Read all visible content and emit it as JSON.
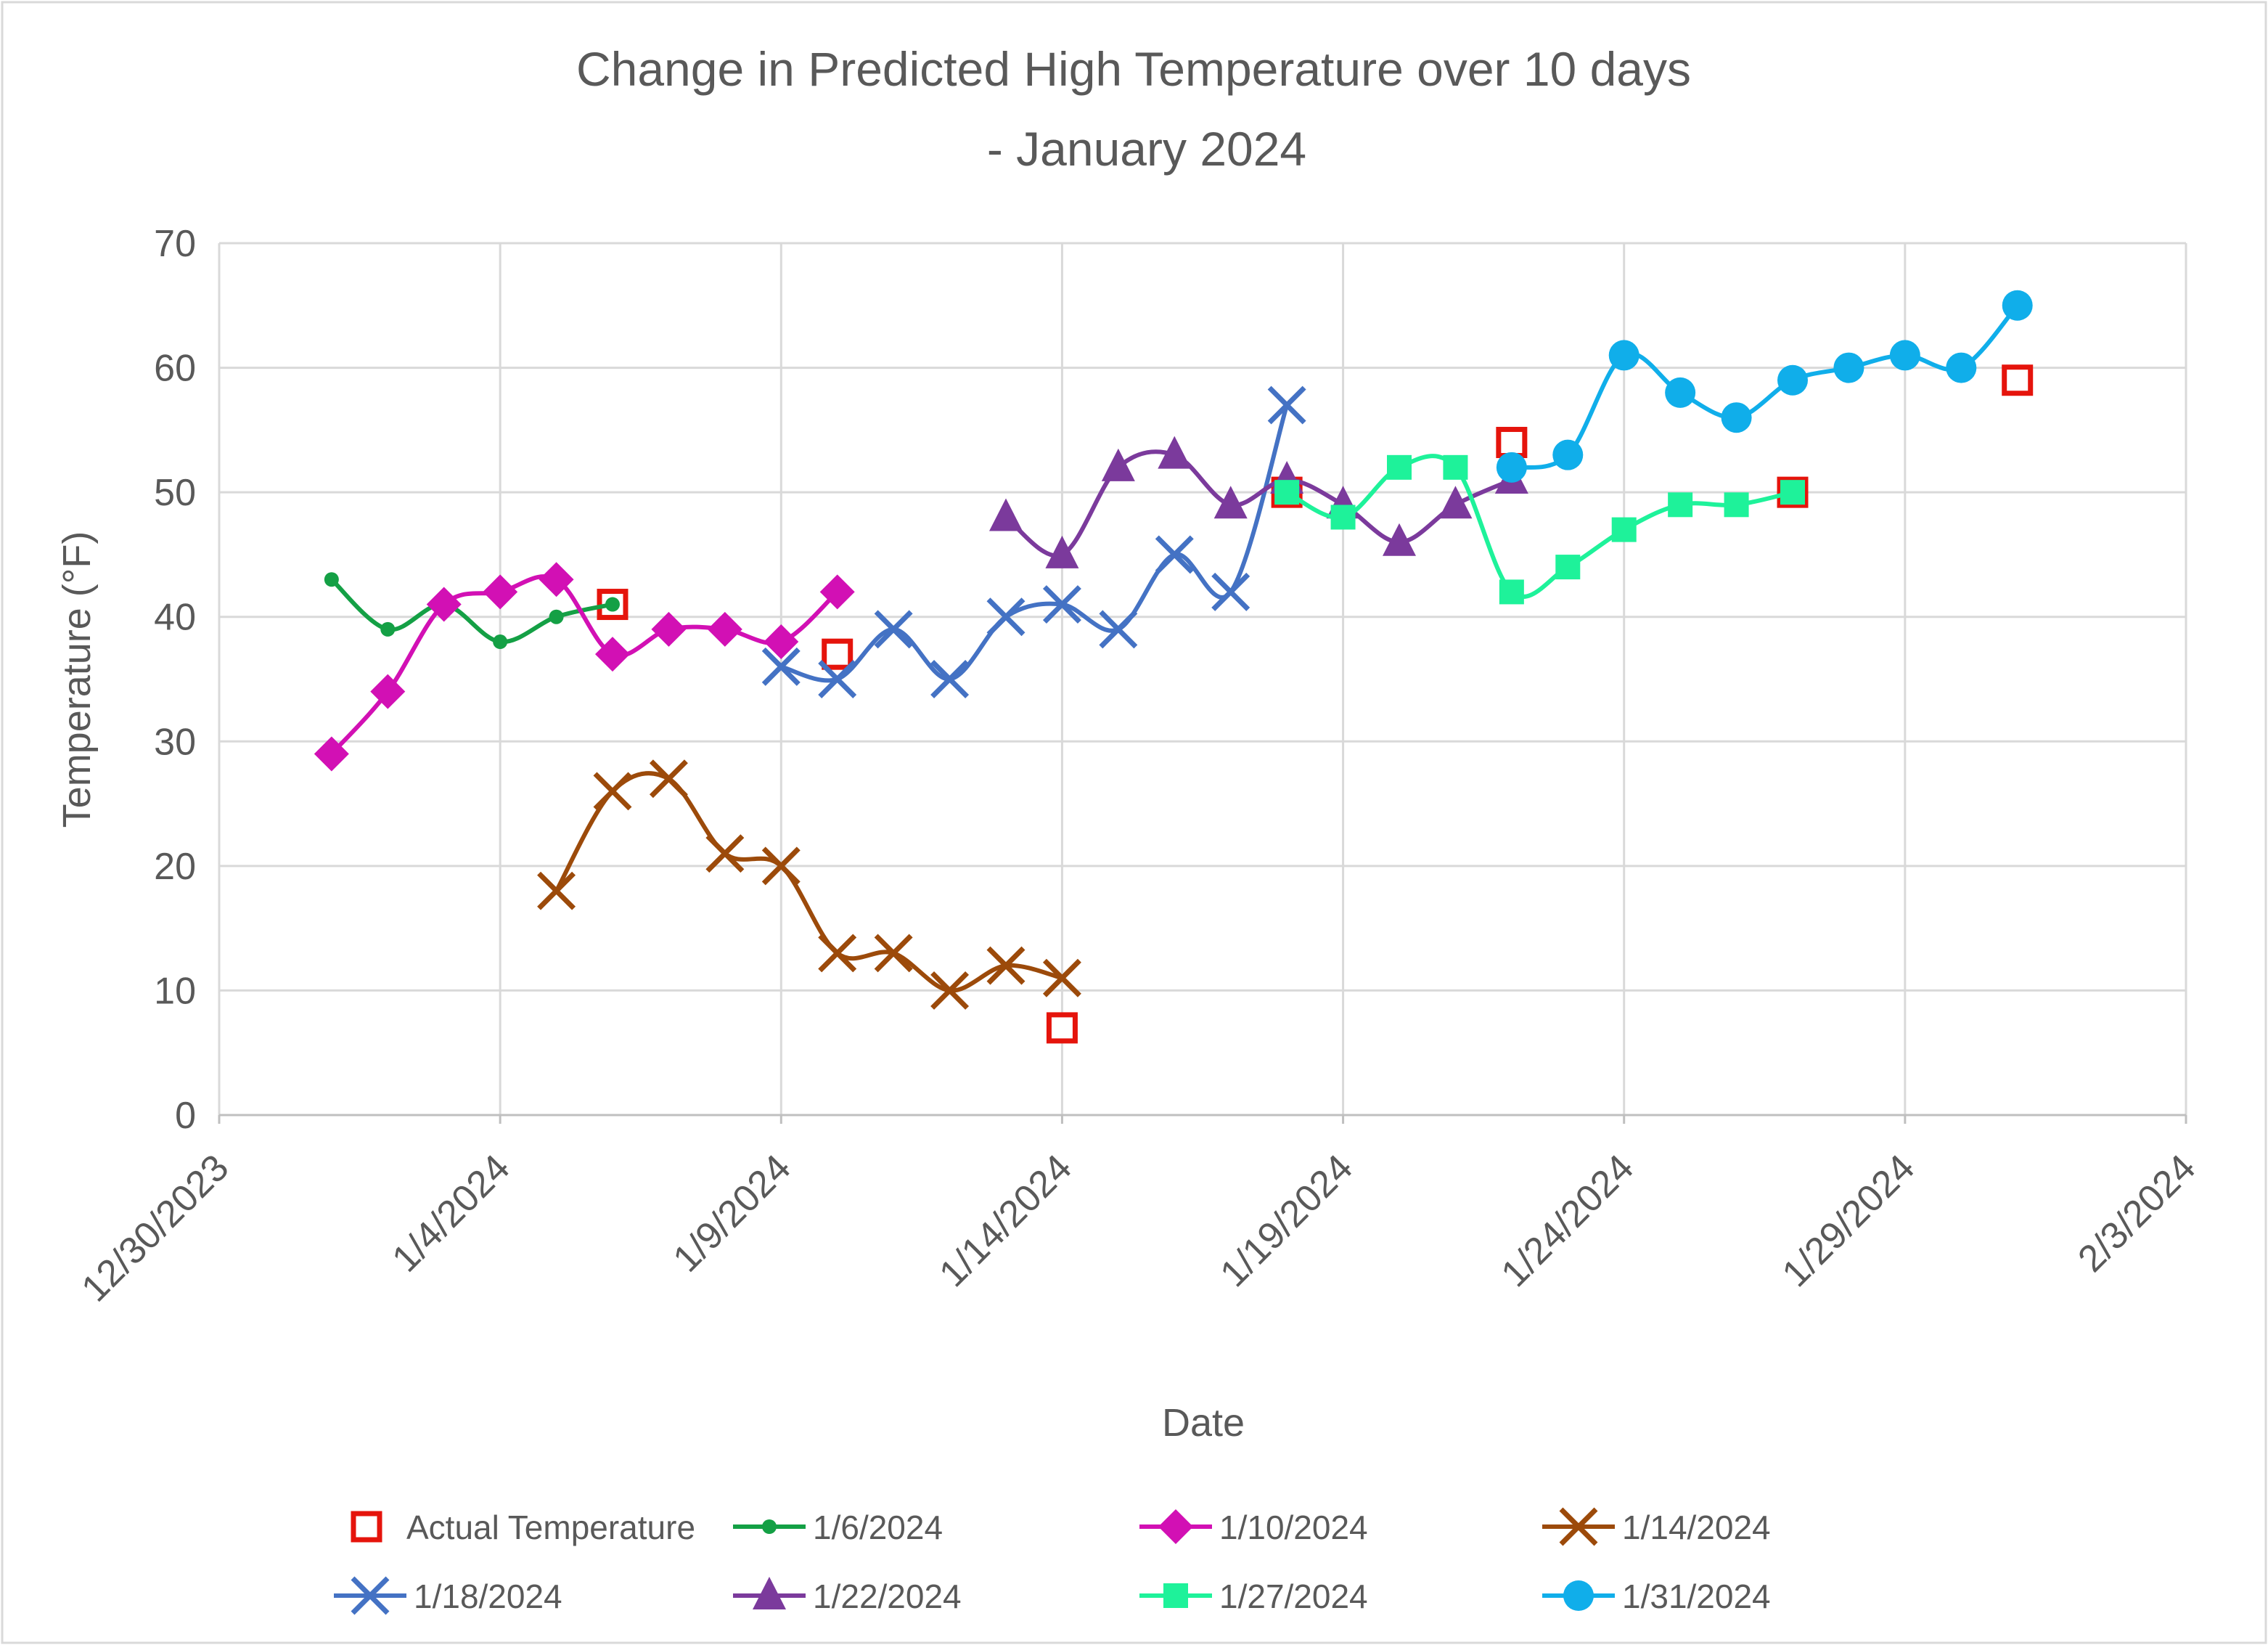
{
  "chart_data": {
    "type": "scatter",
    "title_lines": [
      "Change in Predicted High Temperature over 10 days",
      "- January 2024"
    ],
    "xlabel": "Date",
    "ylabel": "Temperature  (°F)",
    "ylim": [
      0,
      70
    ],
    "y_ticks": [
      0,
      10,
      20,
      30,
      40,
      50,
      60,
      70
    ],
    "xlim_days": [
      0,
      35
    ],
    "x_ticks": [
      {
        "day": 0,
        "label": "12/30/2023"
      },
      {
        "day": 5,
        "label": "1/4/2024"
      },
      {
        "day": 10,
        "label": "1/9/2024"
      },
      {
        "day": 15,
        "label": "1/14/2024"
      },
      {
        "day": 20,
        "label": "1/19/2024"
      },
      {
        "day": 25,
        "label": "1/24/2024"
      },
      {
        "day": 30,
        "label": "1/29/2024"
      },
      {
        "day": 35,
        "label": "2/3/2024"
      }
    ],
    "x_unit_note": "x values are days after 12/30/2023",
    "grid": true,
    "legend_position": "bottom",
    "series": [
      {
        "name": "Actual Temperature",
        "color": "#e5140c",
        "marker": "square-open",
        "line": false,
        "x": [
          7,
          11,
          15,
          19,
          23,
          28,
          32
        ],
        "y": [
          41,
          37,
          7,
          50,
          54,
          50,
          59
        ]
      },
      {
        "name": "1/6/2024",
        "color": "#14a045",
        "marker": "circle-small",
        "line": true,
        "x": [
          2,
          3,
          4,
          5,
          6,
          7
        ],
        "y": [
          43,
          39,
          41,
          38,
          40,
          41
        ]
      },
      {
        "name": "1/10/2024",
        "color": "#d210b4",
        "marker": "diamond",
        "line": true,
        "x": [
          2,
          3,
          4,
          5,
          6,
          7,
          8,
          9,
          10,
          11
        ],
        "y": [
          29,
          34,
          41,
          42,
          43,
          37,
          39,
          39,
          38,
          42
        ]
      },
      {
        "name": "1/14/2024",
        "color": "#9c4a0a",
        "marker": "x",
        "line": true,
        "x": [
          6,
          7,
          8,
          9,
          10,
          11,
          12,
          13,
          14,
          15
        ],
        "y": [
          18,
          26,
          27,
          21,
          20,
          13,
          13,
          10,
          12,
          11
        ]
      },
      {
        "name": "1/18/2024",
        "color": "#4472c4",
        "marker": "x",
        "line": true,
        "x": [
          10,
          11,
          12,
          13,
          14,
          15,
          16,
          17,
          18,
          19
        ],
        "y": [
          36,
          35,
          39,
          35,
          40,
          41,
          39,
          45,
          42,
          57
        ]
      },
      {
        "name": "1/22/2024",
        "color": "#7b3a9c",
        "marker": "triangle",
        "line": true,
        "x": [
          14,
          15,
          16,
          17,
          18,
          19,
          20,
          21,
          22,
          23
        ],
        "y": [
          48,
          45,
          52,
          53,
          49,
          51,
          49,
          46,
          49,
          51
        ]
      },
      {
        "name": "1/27/2024",
        "color": "#1ef29a",
        "marker": "square",
        "line": true,
        "x": [
          19,
          20,
          21,
          22,
          23,
          24,
          25,
          26,
          27,
          28
        ],
        "y": [
          50,
          48,
          52,
          52,
          42,
          44,
          47,
          49,
          49,
          50
        ]
      },
      {
        "name": "1/31/2024",
        "color": "#10aeea",
        "marker": "circle",
        "line": true,
        "x": [
          23,
          24,
          25,
          26,
          27,
          28,
          29,
          30,
          31,
          32
        ],
        "y": [
          52,
          53,
          61,
          58,
          56,
          59,
          60,
          61,
          60,
          65
        ]
      }
    ]
  }
}
